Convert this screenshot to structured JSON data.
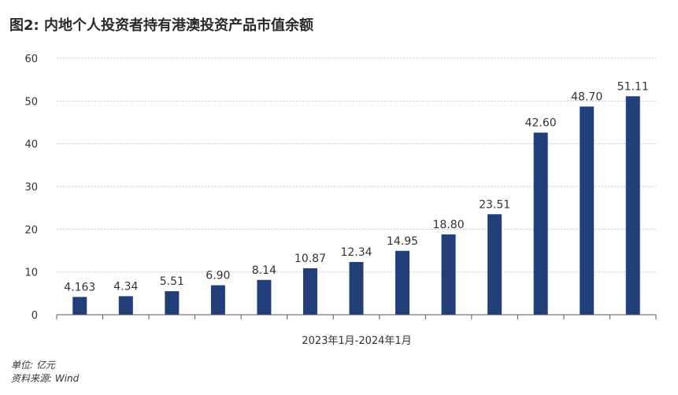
{
  "title": "图2: 内地个人投资者持有港澳投资产品市值余额",
  "notes": {
    "unit": "单位: 亿元",
    "source": "资料来源: Wind"
  },
  "colors": {
    "bar": "#233f7a",
    "grid": "#c8c8c8",
    "axis": "#555555",
    "text": "#333333"
  },
  "chart_data": {
    "type": "bar",
    "title": "图2: 内地个人投资者持有港澳投资产品市值余额",
    "xlabel": "2023年1月-2024年1月",
    "ylabel": "",
    "ylim": [
      0,
      60
    ],
    "yticks": [
      0,
      10,
      20,
      30,
      40,
      50,
      60
    ],
    "grid": "horizontal dashed",
    "legend": "none",
    "categories": [
      "",
      "",
      "",
      "",
      "",
      "",
      "",
      "",
      "",
      "",
      "",
      "",
      ""
    ],
    "values": [
      4.163,
      4.34,
      5.51,
      6.9,
      8.14,
      10.87,
      12.34,
      14.95,
      18.8,
      23.51,
      42.6,
      48.7,
      51.11
    ],
    "labels": [
      "4.163",
      "4.34",
      "5.51",
      "6.90",
      "8.14",
      "10.87",
      "12.34",
      "14.95",
      "18.80",
      "23.51",
      "42.60",
      "48.70",
      "51.11"
    ]
  }
}
